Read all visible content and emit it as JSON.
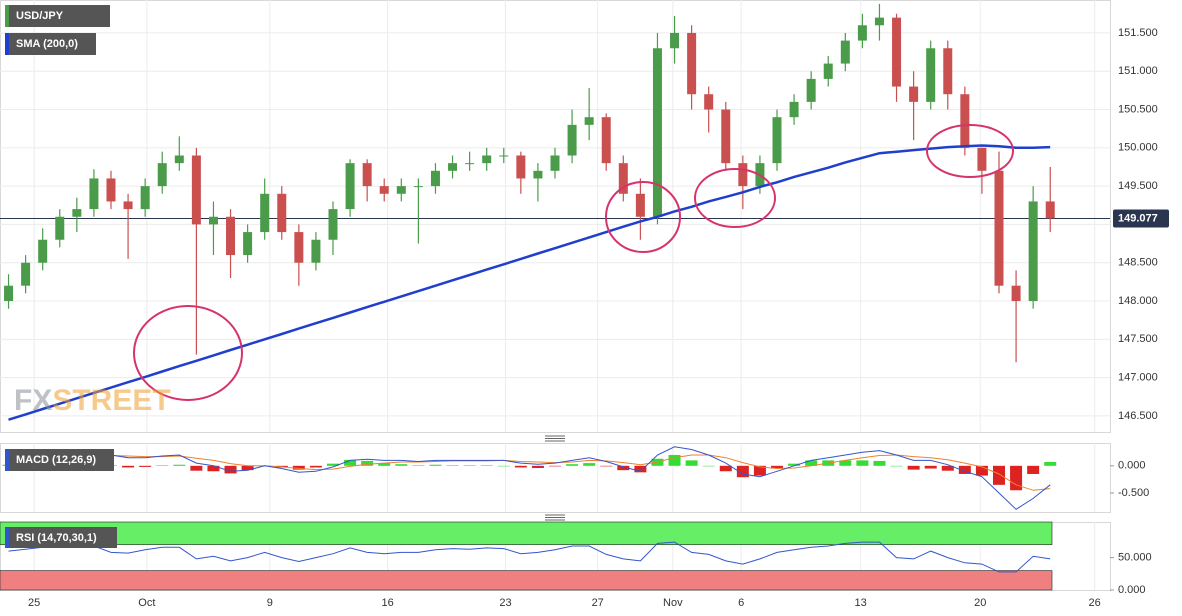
{
  "chart_data": {
    "type": "candlestick",
    "title": "USD/JPY",
    "watermark": {
      "first": "FX",
      "second": "STREET"
    },
    "last_price": {
      "value": 149.077,
      "label": "149.077"
    },
    "xlim": [
      -0.5,
      64.5
    ],
    "xticks": [
      {
        "value": 1.5,
        "label": "25"
      },
      {
        "value": 8.1,
        "label": "Oct"
      },
      {
        "value": 15.3,
        "label": "9"
      },
      {
        "value": 22.2,
        "label": "16"
      },
      {
        "value": 29.1,
        "label": "23"
      },
      {
        "value": 34.5,
        "label": "27"
      },
      {
        "value": 38.9,
        "label": "Nov"
      },
      {
        "value": 42.9,
        "label": "6"
      },
      {
        "value": 49.9,
        "label": "13"
      },
      {
        "value": 56.9,
        "label": "20"
      },
      {
        "value": 63.6,
        "label": "26"
      }
    ],
    "ylim": [
      146.29,
      151.93
    ],
    "yticks": [
      {
        "value": 146.5,
        "label": "146.500"
      },
      {
        "value": 147,
        "label": "147.000"
      },
      {
        "value": 147.5,
        "label": "147.500"
      },
      {
        "value": 148,
        "label": "148.000"
      },
      {
        "value": 148.5,
        "label": "148.500"
      },
      {
        "value": 149,
        "label": "149.000"
      },
      {
        "value": 149.5,
        "label": "149.500"
      },
      {
        "value": 150,
        "label": "150.000"
      },
      {
        "value": 150.5,
        "label": "150.500"
      },
      {
        "value": 151,
        "label": "151.000"
      },
      {
        "value": 151.5,
        "label": "151.500"
      }
    ],
    "grid": true,
    "up_color": "#4a9c4a",
    "down_color": "#c9504f",
    "candles": [
      [
        148.0,
        148.35,
        147.9,
        148.2
      ],
      [
        148.2,
        148.6,
        148.1,
        148.5
      ],
      [
        148.5,
        148.95,
        148.4,
        148.8
      ],
      [
        148.8,
        149.2,
        148.7,
        149.1
      ],
      [
        149.1,
        149.35,
        148.9,
        149.2
      ],
      [
        149.2,
        149.72,
        149.1,
        149.6
      ],
      [
        149.6,
        149.7,
        149.2,
        149.3
      ],
      [
        149.3,
        149.4,
        148.55,
        149.2
      ],
      [
        149.2,
        149.6,
        149.1,
        149.5
      ],
      [
        149.5,
        149.95,
        149.4,
        149.8
      ],
      [
        149.8,
        150.15,
        149.7,
        149.9
      ],
      [
        149.9,
        150.0,
        147.3,
        149.0
      ],
      [
        149.0,
        149.3,
        148.6,
        149.1
      ],
      [
        149.1,
        149.2,
        148.3,
        148.6
      ],
      [
        148.6,
        149.0,
        148.5,
        148.9
      ],
      [
        148.9,
        149.6,
        148.8,
        149.4
      ],
      [
        149.4,
        149.5,
        148.8,
        148.9
      ],
      [
        148.9,
        149.0,
        148.2,
        148.5
      ],
      [
        148.5,
        148.9,
        148.4,
        148.8
      ],
      [
        148.8,
        149.3,
        148.6,
        149.2
      ],
      [
        149.2,
        149.85,
        149.1,
        149.8
      ],
      [
        149.8,
        149.85,
        149.3,
        149.5
      ],
      [
        149.5,
        149.6,
        149.3,
        149.4
      ],
      [
        149.4,
        149.6,
        149.3,
        149.5
      ],
      [
        149.5,
        149.6,
        148.75,
        149.5
      ],
      [
        149.5,
        149.8,
        149.4,
        149.7
      ],
      [
        149.7,
        149.9,
        149.6,
        149.8
      ],
      [
        149.8,
        149.95,
        149.7,
        149.8
      ],
      [
        149.8,
        150.0,
        149.7,
        149.9
      ],
      [
        149.9,
        150.0,
        149.8,
        149.9
      ],
      [
        149.9,
        149.95,
        149.4,
        149.6
      ],
      [
        149.6,
        149.8,
        149.3,
        149.7
      ],
      [
        149.7,
        150.0,
        149.6,
        149.9
      ],
      [
        149.9,
        150.5,
        149.8,
        150.3
      ],
      [
        150.3,
        150.78,
        150.1,
        150.4
      ],
      [
        150.4,
        150.45,
        149.7,
        149.8
      ],
      [
        149.8,
        149.9,
        149.3,
        149.4
      ],
      [
        149.4,
        149.6,
        148.8,
        149.1
      ],
      [
        149.1,
        151.5,
        149.0,
        151.3
      ],
      [
        151.3,
        151.72,
        151.1,
        151.5
      ],
      [
        151.5,
        151.6,
        150.5,
        150.7
      ],
      [
        150.7,
        150.8,
        150.2,
        150.5
      ],
      [
        150.5,
        150.6,
        149.7,
        149.8
      ],
      [
        149.8,
        149.9,
        149.2,
        149.5
      ],
      [
        149.5,
        149.9,
        149.4,
        149.8
      ],
      [
        149.8,
        150.5,
        149.7,
        150.4
      ],
      [
        150.4,
        150.7,
        150.3,
        150.6
      ],
      [
        150.6,
        151.0,
        150.5,
        150.9
      ],
      [
        150.9,
        151.2,
        150.8,
        151.1
      ],
      [
        151.1,
        151.5,
        151.0,
        151.4
      ],
      [
        151.4,
        151.75,
        151.3,
        151.6
      ],
      [
        151.6,
        151.88,
        151.4,
        151.7
      ],
      [
        151.7,
        151.75,
        150.6,
        150.8
      ],
      [
        150.8,
        151.0,
        150.1,
        150.6
      ],
      [
        150.6,
        151.4,
        150.5,
        151.3
      ],
      [
        151.3,
        151.4,
        150.5,
        150.7
      ],
      [
        150.7,
        150.8,
        149.9,
        150.0
      ],
      [
        150.0,
        150.0,
        149.4,
        149.7
      ],
      [
        149.7,
        149.95,
        148.1,
        148.2
      ],
      [
        148.2,
        148.4,
        147.2,
        148.0
      ],
      [
        148.0,
        149.5,
        147.9,
        149.3
      ],
      [
        149.3,
        149.75,
        148.9,
        149.08
      ]
    ],
    "sma": {
      "name": "SMA (200,0)",
      "color": "#1f3fcc",
      "values": [
        146.45,
        146.52,
        146.59,
        146.66,
        146.73,
        146.8,
        146.87,
        146.94,
        147.01,
        147.08,
        147.15,
        147.22,
        147.29,
        147.36,
        147.43,
        147.5,
        147.57,
        147.64,
        147.71,
        147.78,
        147.85,
        147.92,
        147.99,
        148.06,
        148.13,
        148.2,
        148.27,
        148.34,
        148.41,
        148.48,
        148.55,
        148.62,
        148.69,
        148.76,
        148.83,
        148.9,
        148.97,
        149.04,
        149.1,
        149.17,
        149.23,
        149.3,
        149.36,
        149.42,
        149.49,
        149.55,
        149.62,
        149.68,
        149.74,
        149.81,
        149.87,
        149.93,
        149.95,
        149.97,
        149.99,
        150.01,
        150.02,
        150.03,
        150.02,
        150.0,
        150.0,
        150.01
      ]
    },
    "macd": {
      "name": "MACD (12,26,9)",
      "ylim": [
        -0.85,
        0.42
      ],
      "yticks": [
        {
          "value": 0,
          "label": "0.000"
        },
        {
          "value": -0.5,
          "label": "-0.500"
        }
      ],
      "macd_color": "#3355cc",
      "signal_color": "#f08030",
      "pos_color": "#33dd33",
      "neg_color": "#dd2222",
      "macd": [
        0.05,
        0.1,
        0.15,
        0.2,
        0.22,
        0.25,
        0.2,
        0.15,
        0.15,
        0.18,
        0.2,
        0.05,
        0.0,
        -0.1,
        -0.08,
        0.0,
        -0.05,
        -0.12,
        -0.1,
        -0.02,
        0.1,
        0.12,
        0.1,
        0.1,
        0.08,
        0.1,
        0.1,
        0.1,
        0.1,
        0.1,
        0.05,
        0.03,
        0.05,
        0.1,
        0.15,
        0.08,
        -0.02,
        -0.1,
        0.2,
        0.35,
        0.3,
        0.2,
        0.05,
        -0.15,
        -0.2,
        -0.1,
        0.0,
        0.1,
        0.15,
        0.2,
        0.25,
        0.28,
        0.2,
        0.1,
        0.1,
        0.02,
        -0.1,
        -0.2,
        -0.5,
        -0.8,
        -0.6,
        -0.35
      ],
      "signal": [
        0.03,
        0.05,
        0.08,
        0.12,
        0.15,
        0.18,
        0.19,
        0.18,
        0.17,
        0.17,
        0.18,
        0.14,
        0.1,
        0.04,
        0.0,
        0.0,
        -0.02,
        -0.05,
        -0.07,
        -0.06,
        -0.01,
        0.03,
        0.05,
        0.07,
        0.07,
        0.08,
        0.09,
        0.09,
        0.09,
        0.1,
        0.08,
        0.07,
        0.06,
        0.07,
        0.1,
        0.09,
        0.06,
        0.02,
        0.07,
        0.15,
        0.2,
        0.2,
        0.15,
        0.06,
        -0.02,
        -0.05,
        -0.04,
        0.0,
        0.05,
        0.1,
        0.15,
        0.19,
        0.2,
        0.17,
        0.15,
        0.11,
        0.05,
        -0.02,
        -0.15,
        -0.35,
        -0.45,
        -0.42
      ],
      "histogram": [
        0.02,
        0.05,
        0.07,
        0.08,
        0.07,
        0.07,
        0.01,
        -0.03,
        -0.02,
        0.01,
        0.02,
        -0.09,
        -0.1,
        -0.14,
        -0.08,
        0.0,
        -0.03,
        -0.07,
        -0.03,
        0.04,
        0.11,
        0.09,
        0.05,
        0.03,
        0.01,
        0.02,
        0.01,
        0.01,
        0.01,
        0.0,
        -0.03,
        -0.04,
        -0.01,
        0.03,
        0.05,
        -0.01,
        -0.08,
        -0.12,
        0.13,
        0.2,
        0.1,
        0.0,
        -0.1,
        -0.21,
        -0.18,
        -0.05,
        0.04,
        0.1,
        0.1,
        0.1,
        0.1,
        0.09,
        0.0,
        -0.07,
        -0.05,
        -0.09,
        -0.15,
        -0.18,
        -0.35,
        -0.45,
        -0.15,
        0.07
      ]
    },
    "rsi": {
      "name": "RSI (14,70,30,1)",
      "ylim": [
        0,
        105
      ],
      "yticks": [
        {
          "value": 50,
          "label": "50.000"
        },
        {
          "value": 0,
          "label": "0.000"
        }
      ],
      "upper": 70,
      "lower": 30,
      "color": "#3355cc",
      "upper_color": "#66ee66",
      "lower_color": "#f08080",
      "values": [
        60,
        63,
        66,
        68,
        66,
        68,
        58,
        57,
        62,
        66,
        66,
        48,
        52,
        45,
        50,
        58,
        50,
        44,
        50,
        56,
        65,
        58,
        56,
        58,
        58,
        62,
        64,
        63,
        65,
        64,
        56,
        58,
        62,
        68,
        68,
        55,
        48,
        45,
        72,
        74,
        58,
        55,
        45,
        40,
        48,
        58,
        62,
        66,
        68,
        72,
        74,
        74,
        50,
        48,
        60,
        50,
        42,
        40,
        28,
        28,
        52,
        48
      ]
    }
  }
}
